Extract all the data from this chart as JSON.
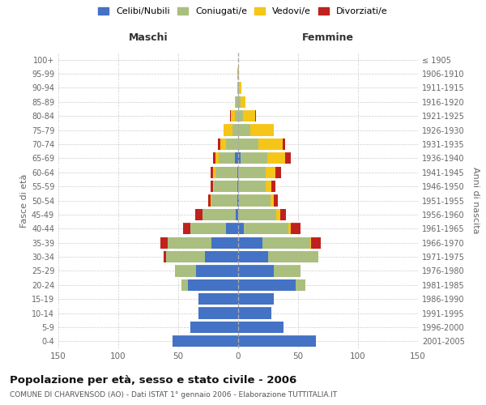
{
  "age_groups": [
    "0-4",
    "5-9",
    "10-14",
    "15-19",
    "20-24",
    "25-29",
    "30-34",
    "35-39",
    "40-44",
    "45-49",
    "50-54",
    "55-59",
    "60-64",
    "65-69",
    "70-74",
    "75-79",
    "80-84",
    "85-89",
    "90-94",
    "95-99",
    "100+"
  ],
  "birth_years": [
    "2001-2005",
    "1996-2000",
    "1991-1995",
    "1986-1990",
    "1981-1985",
    "1976-1980",
    "1971-1975",
    "1966-1970",
    "1961-1965",
    "1956-1960",
    "1951-1955",
    "1946-1950",
    "1941-1945",
    "1936-1940",
    "1931-1935",
    "1926-1930",
    "1921-1925",
    "1916-1920",
    "1911-1915",
    "1906-1910",
    "≤ 1905"
  ],
  "male": {
    "celibi": [
      55,
      40,
      33,
      33,
      42,
      35,
      28,
      22,
      10,
      2,
      1,
      1,
      1,
      3,
      0,
      0,
      0,
      0,
      0,
      0,
      0
    ],
    "coniugati": [
      0,
      0,
      0,
      0,
      5,
      18,
      32,
      37,
      30,
      28,
      21,
      19,
      18,
      13,
      10,
      5,
      3,
      2,
      1,
      1,
      0
    ],
    "vedovi": [
      0,
      0,
      0,
      0,
      0,
      0,
      0,
      0,
      0,
      0,
      1,
      1,
      2,
      3,
      5,
      7,
      3,
      1,
      0,
      0,
      0
    ],
    "divorziati": [
      0,
      0,
      0,
      0,
      0,
      0,
      2,
      6,
      6,
      6,
      2,
      2,
      2,
      2,
      2,
      0,
      1,
      0,
      0,
      0,
      0
    ]
  },
  "female": {
    "nubili": [
      65,
      38,
      28,
      30,
      48,
      30,
      25,
      20,
      5,
      0,
      1,
      0,
      0,
      2,
      0,
      0,
      0,
      0,
      0,
      0,
      0
    ],
    "coniugate": [
      0,
      0,
      0,
      0,
      8,
      22,
      42,
      40,
      37,
      32,
      26,
      23,
      23,
      22,
      17,
      10,
      4,
      2,
      1,
      0,
      0
    ],
    "vedove": [
      0,
      0,
      0,
      0,
      0,
      0,
      0,
      1,
      2,
      3,
      3,
      5,
      8,
      15,
      20,
      20,
      10,
      4,
      2,
      1,
      0
    ],
    "divorziate": [
      0,
      0,
      0,
      0,
      0,
      0,
      0,
      8,
      8,
      5,
      3,
      3,
      5,
      5,
      2,
      0,
      1,
      0,
      0,
      0,
      0
    ]
  },
  "colors": {
    "celibi_nubili": "#4472C4",
    "coniugati": "#AABF7F",
    "vedovi": "#F5C518",
    "divorziati": "#C0211E"
  },
  "xlim": 150,
  "title": "Popolazione per età, sesso e stato civile - 2006",
  "subtitle": "COMUNE DI CHARVENSOD (AO) - Dati ISTAT 1° gennaio 2006 - Elaborazione TUTTITALIA.IT",
  "xlabel_left": "Maschi",
  "xlabel_right": "Femmine",
  "ylabel_left": "Fasce di età",
  "ylabel_right": "Anni di nascita",
  "legend_labels": [
    "Celibi/Nubili",
    "Coniugati/e",
    "Vedovi/e",
    "Divorziati/e"
  ],
  "background_color": "#ffffff",
  "grid_color": "#cccccc"
}
